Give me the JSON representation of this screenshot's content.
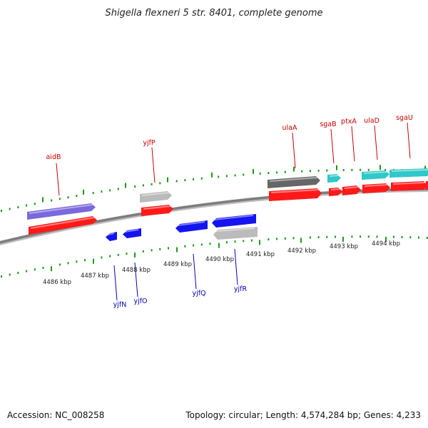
{
  "title": "Shigella flexneri 5 str. 8401, complete genome",
  "footer": {
    "accession": "Accession: NC_008258",
    "summary": "Topology: circular; Length: 4,574,284 bp; Genes: 4,233"
  },
  "colors": {
    "backbone": "#808080",
    "tick": "#1a9a1a",
    "cds": "#ff1a1a",
    "gene_forward_blue": "#7a68dd",
    "gene_reverse_blue": "#1414f0",
    "gene_grey": "#bbbbbb",
    "gene_dark": "#666666",
    "gene_cyan": "#30c8c8",
    "label_forward": "#cc0000",
    "label_reverse": "#0000bb"
  },
  "scale_labels": [
    "4486 kbp",
    "4487 kbp",
    "4488 kbp",
    "4489 kbp",
    "4490 kbp",
    "4491 kbp",
    "4492 kbp",
    "4493 kbp",
    "4494 kbp"
  ],
  "forward_labels": [
    "aidB",
    "yjfP",
    "ulaA",
    "sgaB",
    "ptxA",
    "ulaD",
    "sgaU"
  ],
  "reverse_labels": [
    "yjfN",
    "yjfO",
    "yjfQ",
    "yjfR"
  ]
}
